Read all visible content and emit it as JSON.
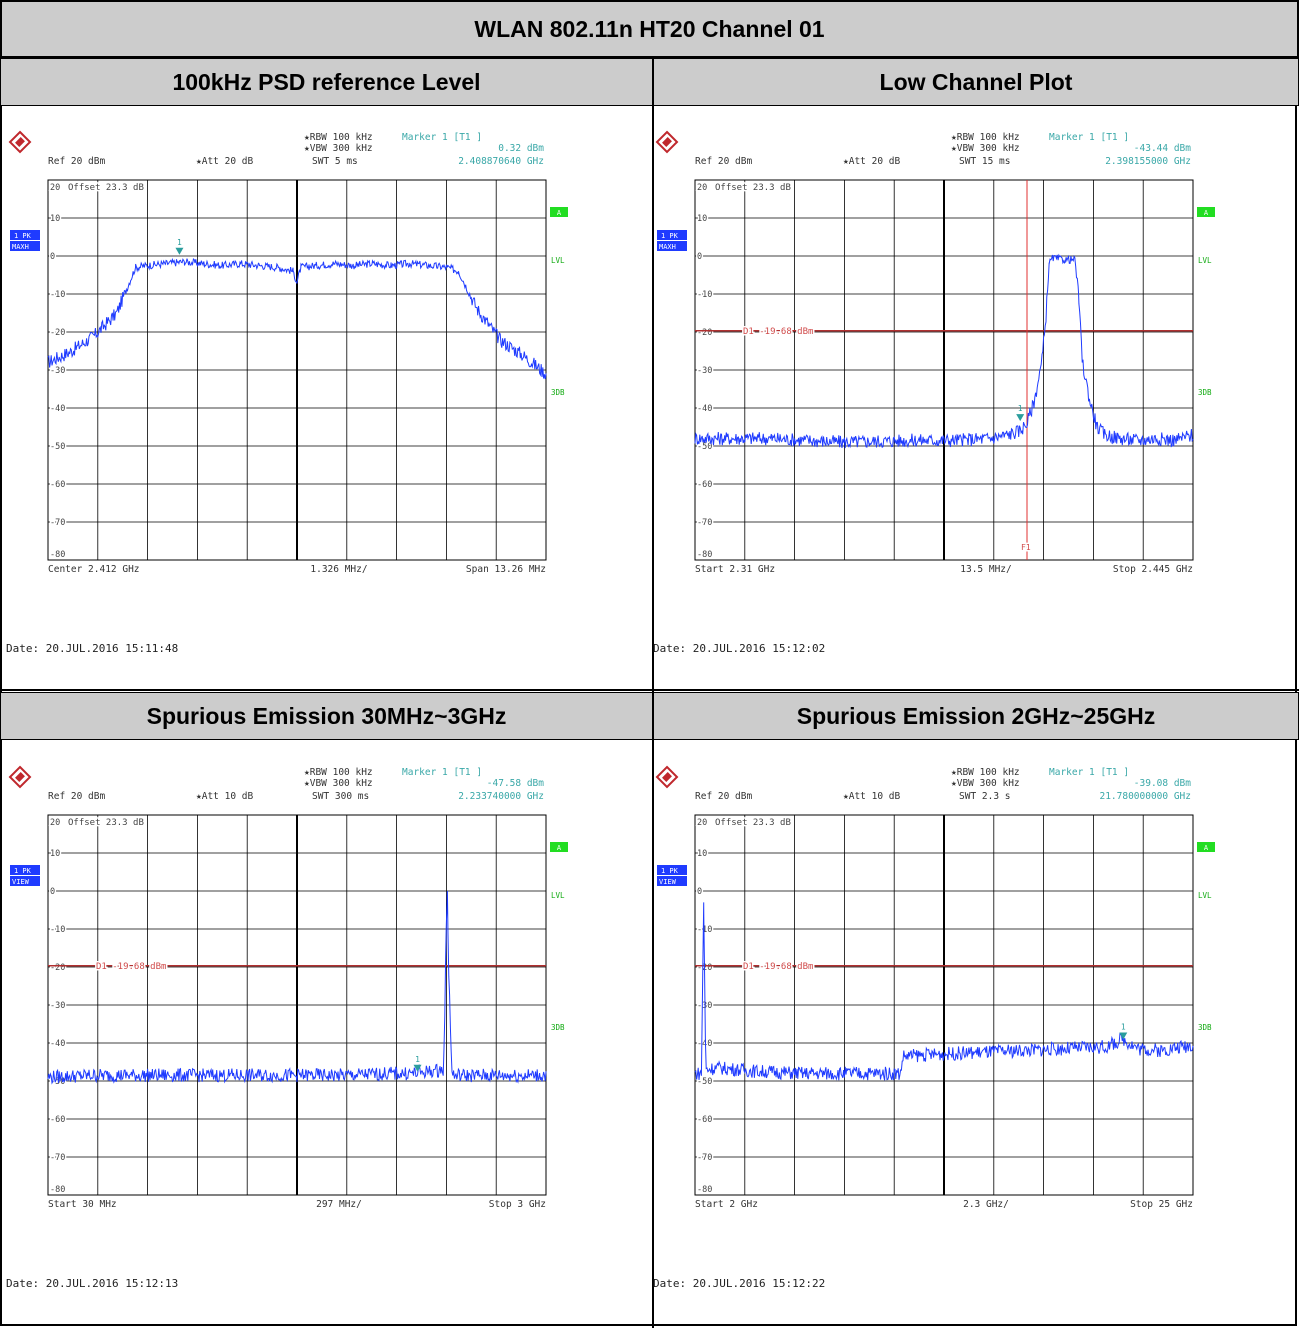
{
  "title": "WLAN 802.11n HT20 Channel 01",
  "panels": [
    {
      "heading": "100kHz PSD reference Level",
      "ref": "Ref  20 dBm",
      "att": "Att  20 dB",
      "rbw": "RBW 100 kHz",
      "vbw": "VBW 300 kHz",
      "swt": "SWT 5 ms",
      "marker_label": "Marker 1 [T1 ]",
      "marker_level": "0.32 dBm",
      "marker_freq": "2.408870640 GHz",
      "offset": "Offset  23.3 dB",
      "trace_badge": [
        "1 PK",
        "MAXH"
      ],
      "right_tags": [
        "A",
        "LVL",
        "3DB"
      ],
      "footer_left": "Center 2.412 GHz",
      "footer_mid": "1.326 MHz/",
      "footer_right": "Span 13.26 MHz",
      "date": "Date: 20.JUL.2016  15:11:48",
      "display_line": "",
      "fline": ""
    },
    {
      "heading": "Low Channel Plot",
      "ref": "Ref  20 dBm",
      "att": "Att  20 dB",
      "rbw": "RBW 100 kHz",
      "vbw": "VBW 300 kHz",
      "swt": "SWT 15 ms",
      "marker_label": "Marker 1 [T1 ]",
      "marker_level": "-43.44 dBm",
      "marker_freq": "2.398155000 GHz",
      "offset": "Offset  23.3 dB",
      "trace_badge": [
        "1 PK",
        "MAXH"
      ],
      "right_tags": [
        "A",
        "LVL",
        "3DB"
      ],
      "footer_left": "Start 2.31 GHz",
      "footer_mid": "13.5 MHz/",
      "footer_right": "Stop 2.445 GHz",
      "date": "Date: 20.JUL.2016  15:12:02",
      "display_line": "D1 -19.68 dBm",
      "fline": "F1"
    },
    {
      "heading": "Spurious Emission 30MHz~3GHz",
      "ref": "Ref  20 dBm",
      "att": "Att  10 dB",
      "rbw": "RBW 100 kHz",
      "vbw": "VBW 300 kHz",
      "swt": "SWT 300 ms",
      "marker_label": "Marker 1 [T1 ]",
      "marker_level": "-47.58 dBm",
      "marker_freq": "2.233740000 GHz",
      "offset": "Offset  23.3 dB",
      "trace_badge": [
        "1 PK",
        "VIEW"
      ],
      "right_tags": [
        "A",
        "LVL",
        "3DB"
      ],
      "footer_left": "Start 30 MHz",
      "footer_mid": "297 MHz/",
      "footer_right": "Stop 3 GHz",
      "date": "Date: 20.JUL.2016  15:12:13",
      "display_line": "D1 -19.68 dBm",
      "fline": ""
    },
    {
      "heading": "Spurious Emission 2GHz~25GHz",
      "ref": "Ref  20 dBm",
      "att": "Att  10 dB",
      "rbw": "RBW 100 kHz",
      "vbw": "VBW 300 kHz",
      "swt": "SWT 2.3 s",
      "marker_label": "Marker 1 [T1 ]",
      "marker_level": "-39.08 dBm",
      "marker_freq": "21.780000000 GHz",
      "offset": "Offset  23.3 dB",
      "trace_badge": [
        "1 PK",
        "VIEW"
      ],
      "right_tags": [
        "A",
        "LVL",
        "3DB"
      ],
      "footer_left": "Start 2 GHz",
      "footer_mid": "2.3 GHz/",
      "footer_right": "Stop 25 GHz",
      "date": "Date: 20.JUL.2016  15:12:22",
      "display_line": "D1 -19.68 dBm",
      "fline": ""
    }
  ],
  "chart_data": [
    {
      "type": "line",
      "xlabel": "",
      "ylabel": "",
      "xlim": [
        2.40537,
        2.41863
      ],
      "ylim": [
        -80,
        20
      ],
      "y_ticks": [
        20,
        10,
        0,
        -10,
        -20,
        -30,
        -40,
        -50,
        -60,
        -70,
        -80
      ],
      "grid": true,
      "series": [
        {
          "x": [
            2.40537,
            2.406,
            2.4066,
            2.4072,
            2.4077,
            2.408,
            2.4085,
            2.409,
            2.4095,
            2.41,
            2.4105,
            2.411,
            2.4115,
            2.4119,
            2.412,
            2.4121,
            2.4125,
            2.413,
            2.4135,
            2.414,
            2.4145,
            2.415,
            2.4155,
            2.416,
            2.4163,
            2.4168,
            2.4174,
            2.418,
            2.41863
          ],
          "values": [
            -28,
            -25,
            -21,
            -15,
            -3,
            -2.5,
            -2,
            -1.5,
            -2,
            -2.5,
            -2,
            -2.5,
            -3,
            -4,
            -7,
            -3,
            -2.5,
            -2,
            -2.5,
            -2,
            -2.5,
            -2,
            -2.5,
            -3,
            -4,
            -14,
            -22,
            -26,
            -31
          ]
        }
      ],
      "marker": {
        "x": 2.40887,
        "y": 0.32,
        "label": "1"
      }
    },
    {
      "type": "line",
      "xlabel": "",
      "ylabel": "",
      "xlim": [
        2.31,
        2.445
      ],
      "ylim": [
        -80,
        20
      ],
      "y_ticks": [
        20,
        10,
        0,
        -10,
        -20,
        -30,
        -40,
        -50,
        -60,
        -70,
        -80
      ],
      "grid": true,
      "display_line": -19.68,
      "f1_line": 2.4,
      "series": [
        {
          "x": [
            2.31,
            2.33,
            2.35,
            2.37,
            2.38,
            2.39,
            2.395,
            2.398,
            2.4,
            2.402,
            2.404,
            2.405,
            2.406,
            2.407,
            2.41,
            2.413,
            2.414,
            2.415,
            2.417,
            2.419,
            2.421,
            2.425,
            2.43,
            2.435,
            2.44,
            2.445
          ],
          "values": [
            -48,
            -48,
            -49,
            -48.5,
            -48.5,
            -48,
            -47,
            -46,
            -44,
            -38,
            -28,
            -18,
            -2,
            -0.5,
            -1,
            -1,
            -10,
            -28,
            -38,
            -45,
            -47,
            -48,
            -48.5,
            -48,
            -48.5,
            -47
          ]
        }
      ],
      "marker": {
        "x": 2.398155,
        "y": -43.44,
        "label": "1"
      }
    },
    {
      "type": "line",
      "xlabel": "",
      "ylabel": "",
      "xlim": [
        0.03,
        3.0
      ],
      "ylim": [
        -80,
        20
      ],
      "y_ticks": [
        20,
        10,
        0,
        -10,
        -20,
        -30,
        -40,
        -50,
        -60,
        -70,
        -80
      ],
      "grid": true,
      "display_line": -19.68,
      "series": [
        {
          "x": [
            0.03,
            0.3,
            0.6,
            0.9,
            1.2,
            1.5,
            1.8,
            2.1,
            2.2,
            2.3,
            2.39,
            2.405,
            2.412,
            2.419,
            2.44,
            2.6,
            2.8,
            3.0
          ],
          "values": [
            -49,
            -48.5,
            -48.5,
            -48.5,
            -48.5,
            -48.5,
            -48.5,
            -48,
            -48,
            -47.5,
            -47,
            -10,
            0,
            -20,
            -48.5,
            -48.5,
            -48.5,
            -48.5
          ]
        }
      ],
      "marker": {
        "x": 2.23374,
        "y": -47.58,
        "label": "1"
      }
    },
    {
      "type": "line",
      "xlabel": "",
      "ylabel": "",
      "xlim": [
        2.0,
        25.0
      ],
      "ylim": [
        -80,
        20
      ],
      "y_ticks": [
        20,
        10,
        0,
        -10,
        -20,
        -30,
        -40,
        -50,
        -60,
        -70,
        -80
      ],
      "grid": true,
      "display_line": -19.68,
      "series": [
        {
          "x": [
            2.0,
            2.3,
            2.4,
            2.5,
            3.0,
            5.0,
            7.0,
            9.0,
            11.0,
            11.5,
            11.6,
            13.0,
            15.0,
            17.0,
            19.0,
            21.0,
            21.78,
            22.5,
            23.5,
            25.0
          ],
          "values": [
            -48,
            -48,
            -3,
            -47,
            -46.5,
            -47.5,
            -48,
            -48,
            -48,
            -48,
            -43.5,
            -43,
            -42.5,
            -42,
            -41.5,
            -41,
            -39,
            -41.5,
            -42,
            -40.5
          ]
        }
      ],
      "marker": {
        "x": 21.78,
        "y": -39.08,
        "label": "1"
      }
    }
  ]
}
